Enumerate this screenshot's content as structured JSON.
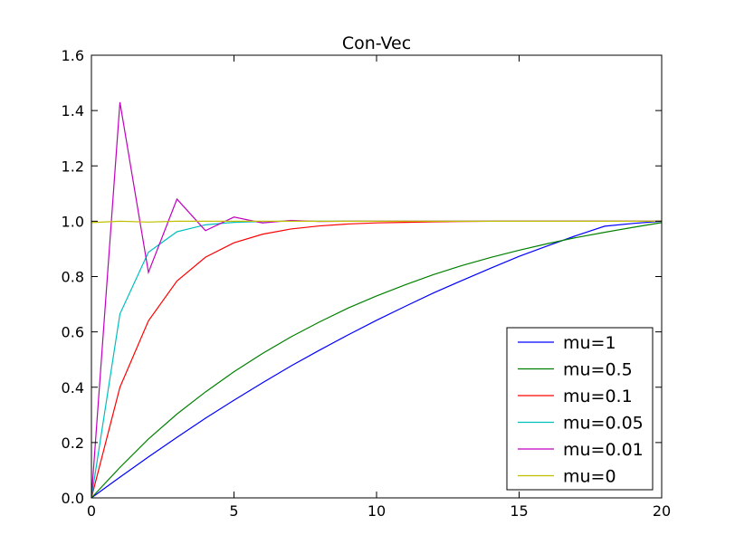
{
  "chart_data": {
    "type": "line",
    "title": "Con-Vec",
    "xlabel": "",
    "ylabel": "",
    "xlim": [
      0,
      20
    ],
    "ylim": [
      0,
      1.6
    ],
    "xticks": [
      0,
      5,
      10,
      15,
      20
    ],
    "xtick_labels": [
      "0",
      "5",
      "10",
      "15",
      "20"
    ],
    "yticks": [
      0,
      0.2,
      0.4,
      0.6,
      0.8,
      1.0,
      1.2,
      1.4,
      1.6
    ],
    "ytick_labels": [
      "0.0",
      "0.2",
      "0.4",
      "0.6",
      "0.8",
      "1.0",
      "1.2",
      "1.4",
      "1.6"
    ],
    "grid": false,
    "legend_position": "bottom-right",
    "x": [
      0,
      1,
      2,
      3,
      4,
      5,
      6,
      7,
      8,
      9,
      10,
      11,
      12,
      13,
      14,
      15,
      16,
      17,
      18,
      19,
      20
    ],
    "series": [
      {
        "name": "mu=1",
        "color": "#0000ff",
        "values": [
          0,
          0.075,
          0.148,
          0.219,
          0.288,
          0.353,
          0.416,
          0.477,
          0.534,
          0.589,
          0.642,
          0.692,
          0.741,
          0.786,
          0.83,
          0.873,
          0.911,
          0.948,
          0.982,
          0.992,
          1.0
        ]
      },
      {
        "name": "mu=0.5",
        "color": "#008000",
        "values": [
          0,
          0.11,
          0.213,
          0.303,
          0.383,
          0.456,
          0.522,
          0.582,
          0.636,
          0.686,
          0.73,
          0.77,
          0.807,
          0.84,
          0.869,
          0.895,
          0.919,
          0.941,
          0.96,
          0.978,
          0.995
        ]
      },
      {
        "name": "mu=0.1",
        "color": "#ff0000",
        "values": [
          0,
          0.4,
          0.64,
          0.784,
          0.87,
          0.922,
          0.953,
          0.972,
          0.983,
          0.99,
          0.994,
          0.996,
          0.998,
          0.999,
          1.0,
          1.0,
          1.0,
          1.0,
          1.0,
          1.0,
          1.0
        ]
      },
      {
        "name": "mu=0.05",
        "color": "#00bfbf",
        "values": [
          0,
          0.665,
          0.888,
          0.962,
          0.987,
          0.996,
          0.999,
          1.0,
          1.0,
          1.0,
          1.0,
          1.0,
          1.0,
          1.0,
          1.0,
          1.0,
          1.0,
          1.0,
          1.0,
          1.0,
          1.0
        ]
      },
      {
        "name": "mu=0.01",
        "color": "#bf00bf",
        "values": [
          0,
          1.43,
          0.815,
          1.08,
          0.966,
          1.015,
          0.994,
          1.003,
          0.999,
          1.0,
          1.0,
          1.0,
          1.0,
          1.0,
          1.0,
          1.0,
          1.0,
          1.0,
          1.0,
          1.0,
          1.0
        ]
      },
      {
        "name": "mu=0",
        "color": "#bfbf00",
        "values": [
          0.995,
          1.0,
          0.997,
          1.0,
          1.0,
          1.0,
          1.0,
          1.0,
          1.0,
          1.0,
          1.0,
          1.0,
          1.0,
          1.0,
          1.0,
          1.0,
          1.0,
          1.0,
          1.0,
          1.0,
          1.0
        ]
      }
    ]
  }
}
